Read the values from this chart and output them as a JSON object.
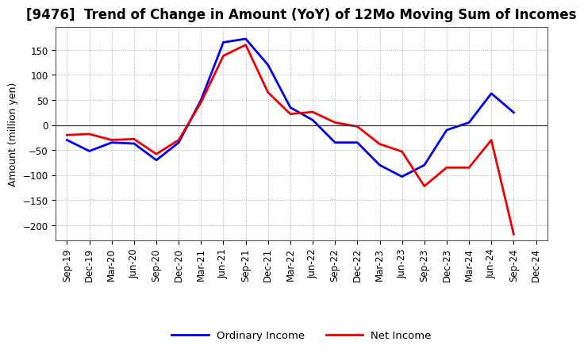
{
  "title": "[9476]  Trend of Change in Amount (YoY) of 12Mo Moving Sum of Incomes",
  "ylabel": "Amount (million yen)",
  "x_labels": [
    "Sep-19",
    "Dec-19",
    "Mar-20",
    "Jun-20",
    "Sep-20",
    "Dec-20",
    "Mar-21",
    "Jun-21",
    "Sep-21",
    "Dec-21",
    "Mar-22",
    "Jun-22",
    "Sep-22",
    "Dec-22",
    "Mar-23",
    "Jun-23",
    "Sep-23",
    "Dec-23",
    "Mar-24",
    "Jun-24",
    "Sep-24",
    "Dec-24"
  ],
  "ordinary_income": [
    -30,
    -52,
    -35,
    -37,
    -70,
    -35,
    50,
    165,
    172,
    120,
    35,
    10,
    -35,
    -35,
    -80,
    -103,
    -80,
    -10,
    5,
    63,
    25,
    null
  ],
  "net_income": [
    -20,
    -18,
    -30,
    -28,
    -58,
    -30,
    45,
    138,
    160,
    65,
    22,
    26,
    5,
    -3,
    -38,
    -53,
    -122,
    -85,
    -85,
    -30,
    -218,
    null
  ],
  "ylim": [
    -230,
    195
  ],
  "yticks": [
    -200,
    -150,
    -100,
    -50,
    0,
    50,
    100,
    150
  ],
  "ordinary_color": "#0000ee",
  "net_color": "#ee0000",
  "line_width": 2.0,
  "background_color": "#FFFFFF",
  "grid_color": "#aaaaaa",
  "legend_ordinary": "Ordinary Income",
  "legend_net": "Net Income",
  "title_fontsize": 12,
  "axis_fontsize": 9,
  "tick_fontsize": 8.5
}
